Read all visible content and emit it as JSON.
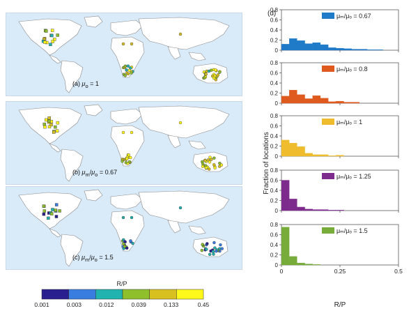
{
  "panel_d_label": "(d)",
  "colorbar": {
    "title": "R/P",
    "ticks": [
      "0.001",
      "0.003",
      "0.012",
      "0.039",
      "0.133",
      "0.45"
    ],
    "colors": [
      "#2a1f8f",
      "#3a7de0",
      "#21b3b0",
      "#8fbf2a",
      "#d9c021",
      "#fff81a"
    ]
  },
  "maps": [
    {
      "label": "(a) μₒ = 1",
      "label_html": "(a) <i>μ</i><sub>o</sub> = 1",
      "points": [
        {
          "region": "north-america",
          "category": "mixed"
        },
        {
          "region": "africa",
          "category": "mixed"
        },
        {
          "region": "australia",
          "category": "mixed"
        }
      ]
    },
    {
      "label": "(b) μₘ/μₒ = 0.67",
      "label_html": "(b) <i>μ</i><sub>m</sub>/<i>μ</i><sub>o</sub> = 0.67",
      "points": [
        {
          "region": "north-america",
          "category": "mixed"
        },
        {
          "region": "africa",
          "category": "mixed"
        },
        {
          "region": "australia",
          "category": "mixed"
        }
      ]
    },
    {
      "label": "(c) μₘ/μₒ = 1.5",
      "label_html": "(c) <i>μ</i><sub>m</sub>/<i>μ</i><sub>o</sub> = 1.5",
      "points": [
        {
          "region": "north-america",
          "category": "mixed"
        },
        {
          "region": "africa",
          "category": "mixed"
        },
        {
          "region": "australia",
          "category": "mixed"
        }
      ]
    }
  ],
  "chart_data": {
    "type": "bar",
    "xlabel": "R/P",
    "ylabel": "Fraction of locations",
    "xlim": [
      0,
      0.5
    ],
    "xticks": [
      0,
      0.25,
      0.5
    ],
    "bin_width": 0.0333,
    "panels": [
      {
        "name": "μₘ/μₒ = 0.67",
        "color": "#1f7ac8",
        "ylim": [
          0,
          0.8
        ],
        "yticks": [
          0,
          0.2,
          0.4,
          0.6,
          0.8
        ],
        "values": [
          0.12,
          0.23,
          0.19,
          0.13,
          0.15,
          0.11,
          0.05,
          0.04,
          0.03,
          0.02,
          0.02,
          0.01,
          0.01,
          0,
          0
        ]
      },
      {
        "name": "μₘ/μₒ = 0.8",
        "color": "#de5a1e",
        "ylim": [
          0,
          0.8
        ],
        "yticks": [
          0,
          0.2,
          0.4,
          0.6,
          0.8
        ],
        "values": [
          0.14,
          0.26,
          0.17,
          0.09,
          0.15,
          0.1,
          0.03,
          0.04,
          0.02,
          0.02,
          0,
          0,
          0,
          0,
          0
        ]
      },
      {
        "name": "μₘ/μₒ = 1",
        "color": "#efbc2d",
        "ylim": [
          0,
          0.8
        ],
        "yticks": [
          0,
          0.2,
          0.4,
          0.6,
          0.8
        ],
        "values": [
          0.32,
          0.26,
          0.19,
          0.06,
          0.03,
          0.03,
          0.01,
          0.02,
          0,
          0,
          0,
          0,
          0,
          0,
          0
        ]
      },
      {
        "name": "μₘ/μₒ = 1.25",
        "color": "#7e2b8e",
        "ylim": [
          0,
          0.8
        ],
        "yticks": [
          0,
          0.2,
          0.4,
          0.6,
          0.8
        ],
        "values": [
          0.6,
          0.23,
          0.07,
          0.03,
          0.02,
          0.02,
          0.01,
          0.01,
          0,
          0,
          0,
          0,
          0,
          0,
          0
        ]
      },
      {
        "name": "μₘ/μₒ = 1.5",
        "color": "#77ab3a",
        "ylim": [
          0,
          0.8
        ],
        "yticks": [
          0,
          0.2,
          0.4,
          0.6,
          0.8
        ],
        "values": [
          0.75,
          0.17,
          0.04,
          0.02,
          0.01,
          0,
          0,
          0,
          0,
          0,
          0,
          0,
          0,
          0,
          0
        ]
      }
    ]
  }
}
